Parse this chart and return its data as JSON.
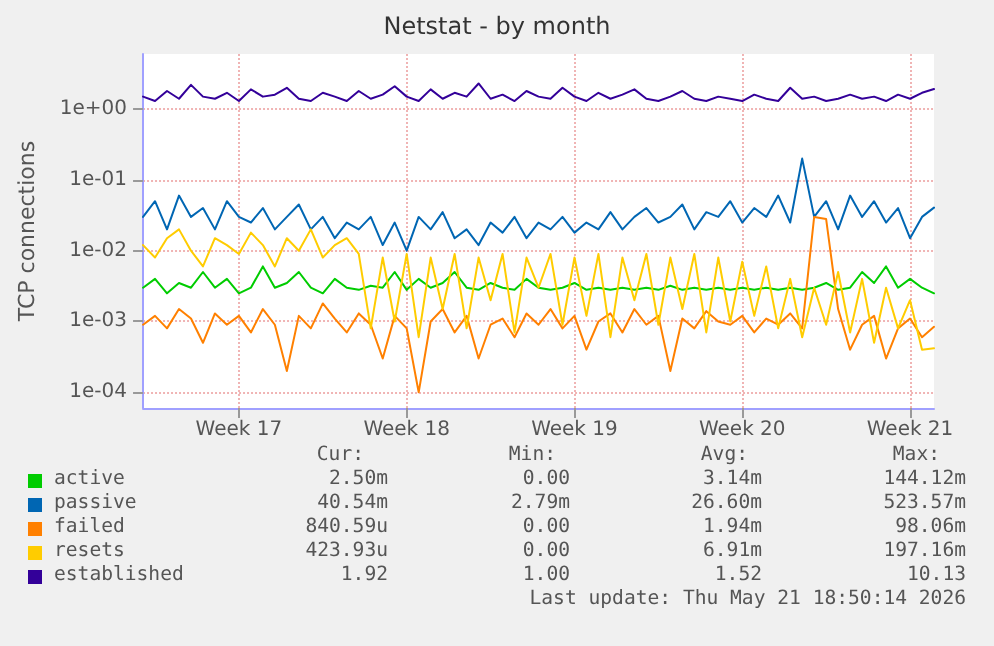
{
  "chart_data": {
    "type": "line",
    "title": "Netstat - by month",
    "ylabel": "TCP connections",
    "categories": [
      null,
      null,
      null,
      null,
      null,
      null,
      null,
      null,
      "Week 17",
      null,
      null,
      null,
      null,
      null,
      null,
      null,
      null,
      null,
      null,
      null,
      null,
      null,
      "Week 18",
      null,
      null,
      null,
      null,
      null,
      null,
      null,
      null,
      null,
      null,
      null,
      null,
      null,
      "Week 19",
      null,
      null,
      null,
      null,
      null,
      null,
      null,
      null,
      null,
      null,
      null,
      null,
      null,
      "Week 20",
      null,
      null,
      null,
      null,
      null,
      null,
      null,
      null,
      null,
      null,
      null,
      null,
      null,
      "Week 21",
      null,
      null
    ],
    "series": [
      {
        "name": "active",
        "color": "#00cc00",
        "values": [
          0.003,
          0.004,
          0.0025,
          0.0035,
          0.003,
          0.005,
          0.003,
          0.004,
          0.0025,
          0.003,
          0.006,
          0.003,
          0.0035,
          0.005,
          0.003,
          0.0025,
          0.004,
          0.003,
          0.0028,
          0.0032,
          0.003,
          0.005,
          0.0028,
          0.004,
          0.003,
          0.0035,
          0.005,
          0.003,
          0.0028,
          0.0035,
          0.003,
          0.0028,
          0.004,
          0.003,
          0.0028,
          0.003,
          0.0035,
          0.0028,
          0.003,
          0.0028,
          0.003,
          0.0028,
          0.003,
          0.0028,
          0.0032,
          0.0028,
          0.003,
          0.0028,
          0.003,
          0.0028,
          0.003,
          0.0028,
          0.003,
          0.0028,
          0.003,
          0.0028,
          0.003,
          0.0035,
          0.0028,
          0.003,
          0.005,
          0.0035,
          0.006,
          0.003,
          0.004,
          0.003,
          0.0025
        ]
      },
      {
        "name": "passive",
        "color": "#0066b3",
        "values": [
          0.03,
          0.05,
          0.02,
          0.06,
          0.03,
          0.04,
          0.02,
          0.05,
          0.03,
          0.025,
          0.04,
          0.02,
          0.03,
          0.045,
          0.02,
          0.03,
          0.015,
          0.025,
          0.02,
          0.03,
          0.012,
          0.025,
          0.01,
          0.03,
          0.02,
          0.035,
          0.015,
          0.02,
          0.012,
          0.025,
          0.018,
          0.03,
          0.015,
          0.025,
          0.02,
          0.03,
          0.018,
          0.025,
          0.02,
          0.035,
          0.02,
          0.03,
          0.04,
          0.025,
          0.03,
          0.045,
          0.02,
          0.035,
          0.03,
          0.05,
          0.025,
          0.04,
          0.03,
          0.06,
          0.025,
          0.2,
          0.03,
          0.05,
          0.02,
          0.06,
          0.03,
          0.05,
          0.025,
          0.04,
          0.015,
          0.03,
          0.04054
        ]
      },
      {
        "name": "failed",
        "color": "#ff8000",
        "values": [
          0.0009,
          0.0012,
          0.0008,
          0.0015,
          0.0011,
          0.0005,
          0.0013,
          0.0009,
          0.0012,
          0.0007,
          0.0015,
          0.0009,
          0.0002,
          0.0012,
          0.0008,
          0.0018,
          0.0011,
          0.0007,
          0.0013,
          0.0009,
          0.0003,
          0.0012,
          0.0008,
          0.0001,
          0.001,
          0.0015,
          0.0007,
          0.0012,
          0.0003,
          0.0009,
          0.0011,
          0.0006,
          0.0013,
          0.0009,
          0.0015,
          0.0008,
          0.0012,
          0.0004,
          0.001,
          0.0013,
          0.0007,
          0.0015,
          0.0009,
          0.0012,
          0.0002,
          0.0011,
          0.0008,
          0.0014,
          0.001,
          0.0009,
          0.0012,
          0.0007,
          0.0011,
          0.0009,
          0.0013,
          0.0008,
          0.03,
          0.028,
          0.0015,
          0.0004,
          0.0009,
          0.0012,
          0.0003,
          0.0008,
          0.0011,
          0.0006,
          0.00084
        ]
      },
      {
        "name": "resets",
        "color": "#ffcc00",
        "values": [
          0.012,
          0.008,
          0.015,
          0.02,
          0.01,
          0.006,
          0.015,
          0.012,
          0.009,
          0.018,
          0.012,
          0.006,
          0.015,
          0.01,
          0.02,
          0.008,
          0.012,
          0.015,
          0.009,
          0.0008,
          0.008,
          0.001,
          0.009,
          0.0006,
          0.008,
          0.0015,
          0.009,
          0.0008,
          0.008,
          0.002,
          0.009,
          0.0007,
          0.008,
          0.003,
          0.009,
          0.0009,
          0.008,
          0.0012,
          0.009,
          0.0006,
          0.008,
          0.002,
          0.009,
          0.0009,
          0.008,
          0.0015,
          0.009,
          0.0007,
          0.008,
          0.001,
          0.007,
          0.0012,
          0.006,
          0.0008,
          0.004,
          0.0006,
          0.003,
          0.0009,
          0.005,
          0.0007,
          0.004,
          0.0005,
          0.003,
          0.0008,
          0.002,
          0.0004,
          0.00042
        ]
      },
      {
        "name": "established",
        "color": "#330099",
        "values": [
          1.5,
          1.3,
          1.8,
          1.4,
          2.2,
          1.5,
          1.4,
          1.7,
          1.3,
          1.9,
          1.5,
          1.6,
          2.0,
          1.4,
          1.3,
          1.7,
          1.5,
          1.3,
          1.8,
          1.4,
          1.6,
          2.1,
          1.5,
          1.3,
          1.9,
          1.4,
          1.7,
          1.5,
          2.3,
          1.4,
          1.6,
          1.3,
          1.8,
          1.5,
          1.4,
          2.0,
          1.5,
          1.3,
          1.7,
          1.4,
          1.6,
          1.9,
          1.4,
          1.3,
          1.5,
          1.8,
          1.4,
          1.3,
          1.5,
          1.4,
          1.3,
          1.6,
          1.4,
          1.3,
          2.0,
          1.4,
          1.5,
          1.3,
          1.4,
          1.6,
          1.4,
          1.5,
          1.3,
          1.6,
          1.4,
          1.7,
          1.92
        ]
      }
    ],
    "ylim": [
      6e-05,
      6
    ],
    "yticks": [
      {
        "value": 0.0001,
        "label": "1e-04"
      },
      {
        "value": 0.001,
        "label": "1e-03"
      },
      {
        "value": 0.01,
        "label": "1e-02"
      },
      {
        "value": 0.1,
        "label": "1e-01"
      },
      {
        "value": 1,
        "label": "1e+00"
      }
    ],
    "log": "y",
    "grid": true,
    "legend": "bottom",
    "marker": "none",
    "line_style": "solid",
    "annotations": [
      "Cur:",
      "Min:",
      "Avg:",
      "Max:",
      "2.50m",
      "0.00",
      "3.14m",
      "144.12m",
      "40.54m",
      "2.79m",
      "26.60m",
      "523.57m",
      "840.59u",
      "0.00",
      "1.94m",
      "98.06m",
      "423.93u",
      "0.00",
      "6.91m",
      "197.16m",
      "1.92",
      "1.00",
      "1.52",
      "10.13",
      "Last update: Thu May 21 18:50:14 2026"
    ]
  }
}
